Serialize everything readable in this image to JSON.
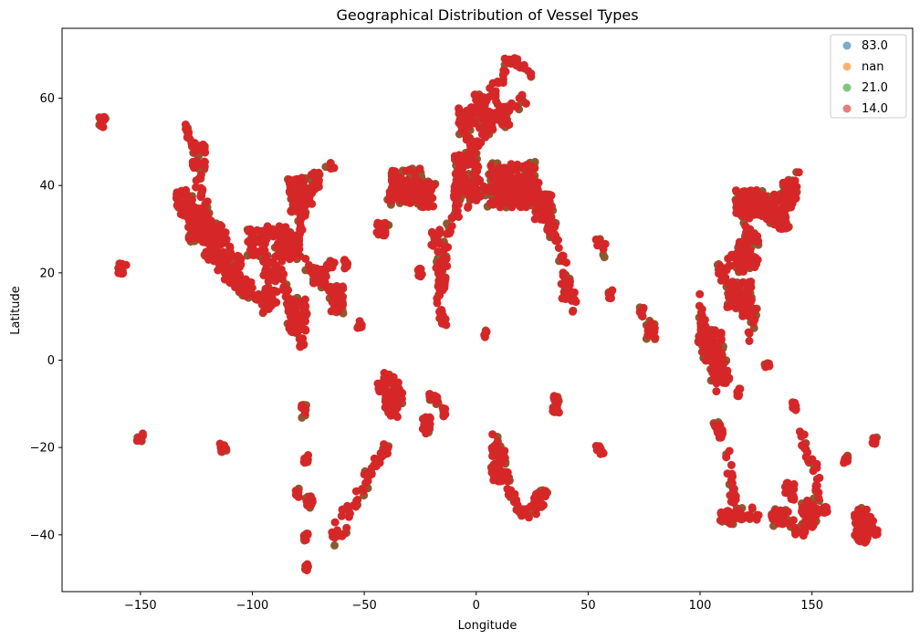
{
  "chart_data": {
    "type": "scatter",
    "title": "Geographical Distribution of Vessel Types",
    "xlabel": "Longitude",
    "ylabel": "Latitude",
    "xlim": [
      -185,
      195
    ],
    "ylim": [
      -53,
      76
    ],
    "xticks": [
      -150,
      -100,
      -50,
      0,
      50,
      100,
      150
    ],
    "yticks": [
      -40,
      -20,
      0,
      20,
      40,
      60
    ],
    "xtick_labels": [
      "−150",
      "−100",
      "−50",
      "0",
      "50",
      "100",
      "150"
    ],
    "ytick_labels": [
      "−40",
      "−20",
      "0",
      "20",
      "40",
      "60"
    ],
    "grid": false,
    "legend_position": "top-right",
    "series": [
      {
        "name": "83.0",
        "color": "#1f77b4"
      },
      {
        "name": "nan",
        "color": "#ff7f0e"
      },
      {
        "name": "21.0",
        "color": "#2ca02c"
      },
      {
        "name": "14.0",
        "color": "#d62728"
      }
    ],
    "mixed_marker_color": "#8c5a2f",
    "dense_color": "#d62728",
    "paths": [
      [
        [
          -133,
          37
        ],
        [
          -127,
          33
        ],
        [
          -123,
          30
        ],
        [
          -119,
          26
        ],
        [
          -115,
          22
        ],
        [
          -110,
          19
        ],
        [
          -106,
          17
        ],
        [
          -101,
          15
        ],
        [
          -96,
          14
        ],
        [
          -92,
          12
        ]
      ],
      [
        [
          -124,
          46
        ],
        [
          -124,
          40
        ],
        [
          -122,
          37
        ],
        [
          -120,
          34
        ]
      ],
      [
        [
          -130,
          54
        ],
        [
          -128,
          51
        ],
        [
          -126,
          49
        ],
        [
          -123,
          48
        ]
      ],
      [
        [
          -110,
          24
        ],
        [
          -112,
          28
        ],
        [
          -114,
          30
        ]
      ],
      [
        [
          -97,
          27
        ],
        [
          -94,
          29
        ],
        [
          -90,
          29
        ],
        [
          -86,
          30
        ],
        [
          -83,
          28
        ],
        [
          -81,
          25
        ],
        [
          -80,
          27
        ],
        [
          -79,
          30
        ],
        [
          -77,
          33
        ],
        [
          -75,
          36
        ],
        [
          -73,
          39
        ],
        [
          -71,
          41
        ]
      ],
      [
        [
          -88,
          21
        ],
        [
          -86,
          18
        ],
        [
          -84,
          15
        ],
        [
          -83,
          11
        ],
        [
          -80,
          9
        ],
        [
          -77,
          8
        ]
      ],
      [
        [
          -76,
          22
        ],
        [
          -72,
          20
        ],
        [
          -68,
          18
        ],
        [
          -64,
          15
        ],
        [
          -61,
          14
        ],
        [
          -60,
          12
        ]
      ],
      [
        [
          -66,
          44
        ],
        [
          -64,
          45
        ]
      ],
      [
        [
          -50,
          -28
        ],
        [
          -48,
          -25
        ],
        [
          -45,
          -23
        ],
        [
          -41,
          -21
        ],
        [
          -40,
          -19
        ]
      ],
      [
        [
          -62,
          -37
        ],
        [
          -59,
          -35
        ],
        [
          -56,
          -34
        ],
        [
          -53,
          -32
        ],
        [
          -50,
          -29
        ]
      ],
      [
        [
          -58,
          -39
        ],
        [
          -62,
          -40
        ],
        [
          -64,
          -41
        ]
      ],
      [
        [
          -40,
          -3
        ],
        [
          -38,
          -4
        ],
        [
          -36,
          -6
        ],
        [
          -35,
          -9
        ],
        [
          -37,
          -12
        ]
      ],
      [
        [
          -9,
          38
        ],
        [
          -9,
          34
        ],
        [
          -13,
          28
        ],
        [
          -17,
          22
        ],
        [
          -17,
          16
        ],
        [
          -16,
          12
        ],
        [
          -15,
          9
        ],
        [
          -13,
          8
        ]
      ],
      [
        [
          -9,
          36
        ],
        [
          -8,
          43
        ],
        [
          -5,
          46
        ],
        [
          -2,
          48
        ],
        [
          2,
          50
        ],
        [
          5,
          53
        ],
        [
          8,
          55
        ],
        [
          11,
          57
        ],
        [
          18,
          59
        ],
        [
          22,
          60
        ]
      ],
      [
        [
          -5,
          36
        ],
        [
          0,
          38
        ],
        [
          5,
          39
        ],
        [
          10,
          40
        ],
        [
          15,
          40
        ],
        [
          20,
          38
        ],
        [
          25,
          37
        ],
        [
          28,
          36
        ],
        [
          32,
          34
        ]
      ],
      [
        [
          12,
          44
        ],
        [
          14,
          42
        ],
        [
          16,
          40
        ],
        [
          18,
          41
        ]
      ],
      [
        [
          24,
          65
        ],
        [
          20,
          68
        ],
        [
          16,
          69
        ],
        [
          14,
          68
        ],
        [
          11,
          64
        ],
        [
          7,
          62
        ]
      ],
      [
        [
          8,
          -18
        ],
        [
          11,
          -22
        ],
        [
          13,
          -26
        ],
        [
          15,
          -30
        ],
        [
          18,
          -34
        ],
        [
          22,
          -35
        ],
        [
          26,
          -34
        ],
        [
          29,
          -32
        ],
        [
          32,
          -30
        ]
      ],
      [
        [
          32,
          31
        ],
        [
          34,
          30
        ],
        [
          36,
          28
        ],
        [
          38,
          24
        ],
        [
          41,
          18
        ],
        [
          43,
          14
        ],
        [
          44,
          12
        ]
      ],
      [
        [
          53,
          27
        ],
        [
          56,
          26
        ],
        [
          58,
          25
        ]
      ],
      [
        [
          77,
          8
        ],
        [
          79,
          7
        ]
      ],
      [
        [
          100,
          4
        ],
        [
          103,
          1
        ],
        [
          104,
          2
        ],
        [
          106,
          -2
        ],
        [
          107,
          -6
        ]
      ],
      [
        [
          100,
          14
        ],
        [
          101,
          9
        ],
        [
          103,
          4
        ]
      ],
      [
        [
          112,
          -22
        ],
        [
          114,
          -27
        ],
        [
          115,
          -32
        ],
        [
          117,
          -35
        ],
        [
          122,
          -35
        ],
        [
          127,
          -36
        ]
      ],
      [
        [
          145,
          -16
        ],
        [
          147,
          -20
        ],
        [
          151,
          -24
        ],
        [
          153,
          -29
        ],
        [
          152,
          -34
        ],
        [
          150,
          -37
        ],
        [
          146,
          -39
        ],
        [
          142,
          -39
        ],
        [
          138,
          -35
        ],
        [
          135,
          -36
        ]
      ],
      [
        [
          113,
          22
        ],
        [
          116,
          24
        ],
        [
          118,
          26
        ],
        [
          120,
          28
        ],
        [
          121,
          31
        ],
        [
          121,
          35
        ],
        [
          119,
          38
        ],
        [
          121,
          37
        ]
      ],
      [
        [
          126,
          35
        ],
        [
          129,
          36
        ],
        [
          131,
          33
        ],
        [
          134,
          34
        ],
        [
          137,
          35
        ],
        [
          140,
          36
        ],
        [
          141,
          39
        ],
        [
          143,
          42
        ]
      ],
      [
        [
          172,
          -42
        ],
        [
          174,
          -38
        ],
        [
          176,
          -37
        ],
        [
          178,
          -39
        ],
        [
          178,
          -41
        ]
      ],
      [
        [
          122,
          5
        ],
        [
          124,
          10
        ],
        [
          124,
          12
        ]
      ],
      [
        [
          -124,
          35
        ],
        [
          -121,
          33
        ],
        [
          -118,
          30
        ],
        [
          -116,
          27
        ],
        [
          -113,
          25
        ]
      ],
      [
        [
          -92,
          30
        ],
        [
          -90,
          28
        ],
        [
          -88,
          25
        ],
        [
          -86,
          23
        ]
      ],
      [
        [
          14,
          54
        ],
        [
          12,
          55
        ],
        [
          10,
          56
        ],
        [
          9,
          58
        ]
      ]
    ],
    "clusters": [
      [
        -167,
        54.5,
        1.5,
        1.2
      ],
      [
        -158,
        21,
        2,
        1.2
      ],
      [
        -150,
        -17.5,
        1.5,
        1
      ],
      [
        -113,
        -20,
        1.5,
        1
      ],
      [
        -124,
        47,
        3,
        3
      ],
      [
        -98,
        27,
        4,
        3
      ],
      [
        -92,
        21,
        3,
        3
      ],
      [
        -83,
        26,
        4,
        3
      ],
      [
        -80,
        10,
        4,
        4
      ],
      [
        -92,
        14,
        3,
        3
      ],
      [
        -78,
        4,
        1,
        1
      ],
      [
        -77,
        -11.5,
        1,
        1.5
      ],
      [
        -76,
        -22.5,
        1,
        1
      ],
      [
        -75,
        -32.5,
        2,
        1.5
      ],
      [
        -76,
        -40.5,
        1,
        1
      ],
      [
        -80,
        -30.5,
        1,
        1
      ],
      [
        -76,
        -47.5,
        0.8,
        0.8
      ],
      [
        -42,
        30,
        3,
        1.5
      ],
      [
        -32,
        40,
        7,
        4
      ],
      [
        -22,
        38,
        4,
        3
      ],
      [
        -18,
        28,
        2,
        2
      ],
      [
        -15,
        20,
        2,
        4
      ],
      [
        -4,
        42,
        6,
        5
      ],
      [
        -5,
        54,
        3,
        4
      ],
      [
        4,
        57,
        5,
        4
      ],
      [
        16,
        40,
        10,
        5
      ],
      [
        23,
        38,
        5,
        3
      ],
      [
        30,
        35,
        4,
        3
      ],
      [
        34,
        30,
        2,
        2
      ],
      [
        35,
        -10,
        2,
        2
      ],
      [
        40,
        16,
        2,
        3
      ],
      [
        -38,
        -10,
        3,
        3
      ],
      [
        -42,
        -6,
        2,
        2
      ],
      [
        -35,
        -8,
        2,
        2
      ],
      [
        -22,
        -15,
        2,
        2
      ],
      [
        -18,
        -9,
        1,
        1
      ],
      [
        -14,
        -12,
        1,
        1
      ],
      [
        4,
        6,
        1,
        0.8
      ],
      [
        10,
        -24,
        3,
        4
      ],
      [
        28,
        -32,
        2,
        2
      ],
      [
        55,
        -20.5,
        2,
        1
      ],
      [
        60,
        15,
        1,
        1
      ],
      [
        74,
        11,
        1,
        1
      ],
      [
        78,
        7,
        2,
        2
      ],
      [
        101,
        7,
        2,
        3
      ],
      [
        106,
        3,
        4,
        4
      ],
      [
        110,
        -3,
        3,
        3
      ],
      [
        110,
        20,
        2,
        2
      ],
      [
        115,
        15,
        3,
        3
      ],
      [
        118,
        22,
        2,
        2
      ],
      [
        121,
        14,
        2,
        4
      ],
      [
        123,
        25,
        3,
        4
      ],
      [
        120,
        36,
        4,
        3
      ],
      [
        127,
        36,
        4,
        3
      ],
      [
        136,
        34,
        4,
        4
      ],
      [
        140,
        38,
        3,
        3
      ],
      [
        130,
        -1,
        1,
        1
      ],
      [
        142,
        -10.5,
        1,
        1
      ],
      [
        135,
        -36,
        3,
        2
      ],
      [
        148,
        -35,
        3,
        3
      ],
      [
        140,
        -30,
        2,
        2
      ],
      [
        165,
        -22.5,
        1,
        1
      ],
      [
        172,
        -38,
        3,
        4
      ],
      [
        178,
        -18.5,
        1,
        1
      ],
      [
        117,
        -7.5,
        1,
        1
      ],
      [
        112,
        -36,
        3,
        1.5
      ],
      [
        108,
        -16,
        2,
        2
      ],
      [
        -130,
        36,
        4,
        3
      ],
      [
        -125,
        31,
        4,
        4
      ],
      [
        -117,
        27,
        4,
        4
      ],
      [
        -109,
        21,
        4,
        3
      ],
      [
        -103,
        17,
        3,
        2
      ],
      [
        -80,
        38,
        4,
        4
      ],
      [
        -72,
        41,
        2,
        2
      ],
      [
        -65,
        22,
        2,
        1
      ],
      [
        -58,
        22,
        1,
        1
      ],
      [
        -52,
        8,
        1,
        1
      ],
      [
        -62,
        14,
        3,
        3
      ],
      [
        -70,
        19,
        3,
        2
      ],
      [
        156,
        -34,
        1,
        1
      ],
      [
        -25,
        20,
        1,
        1
      ],
      [
        -20,
        -8,
        1,
        1
      ]
    ]
  }
}
